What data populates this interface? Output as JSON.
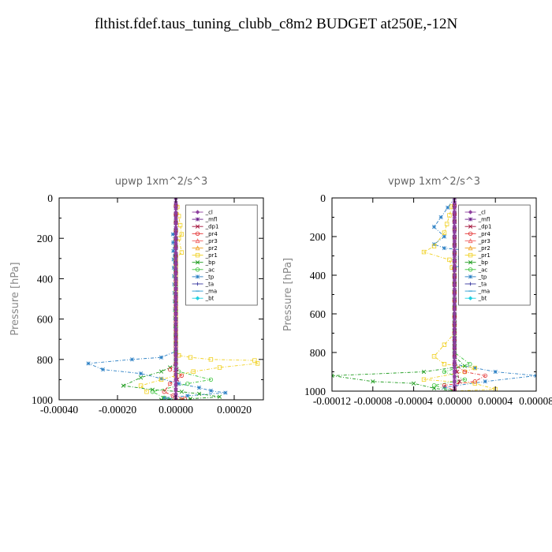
{
  "page": {
    "title": "flthist.fdef.taus_tuning_clubb_c8m2  BUDGET at250E,-12N"
  },
  "colors": {
    "_cl": "#8e3f9e",
    "_mfl": "#6a1c8a",
    "_dp1": "#a3123a",
    "_pr4": "#e33030",
    "_pr3": "#f06060",
    "_pr2": "#f0a020",
    "_pr1": "#f0d020",
    "_bp": "#1a9a1a",
    "_ac": "#3ac43a",
    "_tp": "#2a7fc4",
    "_ta": "#3a3aa0",
    "_ma": "#2a9ad0",
    "_bt": "#20d0e0"
  },
  "chart_data": [
    {
      "type": "line",
      "title": "upwp   1xm^2/s^3",
      "xlabel": "",
      "ylabel": "Pressure [hPa]",
      "xlim": [
        -0.0004,
        0.0003
      ],
      "ylim": [
        1000,
        0
      ],
      "xticks": [
        -0.0004,
        -0.0002,
        0.0,
        0.0002
      ],
      "xtick_labels": [
        "-0.00040",
        "-0.00020",
        "0.00000",
        "0.00020"
      ],
      "yticks": [
        0,
        200,
        400,
        600,
        800,
        1000
      ],
      "ytick_labels": [
        "0",
        "200",
        "400",
        "600",
        "800",
        "1000"
      ],
      "legend": [
        "_cl",
        "_mfl",
        "_dp1",
        "_pr4",
        "_pr3",
        "_pr2",
        "_pr1",
        "_bp",
        "_ac",
        "_tp",
        "_ta",
        "_ma",
        "_bt"
      ],
      "legend_position": "top-right",
      "series": [
        {
          "name": "_tp",
          "x": [
            0.0,
            0.0,
            -1e-05,
            0.0,
            -5e-05,
            -0.00015,
            -0.0003,
            -0.00025,
            -0.00012,
            -5e-05,
            1e-05,
            8e-05,
            0.00012,
            0.00017,
            4e-05,
            -4e-05,
            -2e-05
          ],
          "y": [
            0,
            150,
            180,
            760,
            790,
            800,
            820,
            850,
            870,
            895,
            920,
            940,
            955,
            965,
            980,
            990,
            1000
          ]
        },
        {
          "name": "_pr1",
          "x": [
            0.0,
            2e-05,
            1e-05,
            2e-05,
            0.0,
            0.0,
            1e-05,
            5e-05,
            0.00012,
            0.00027,
            0.00028,
            0.00015,
            6e-05,
            0.0,
            -5e-05,
            -0.00012,
            -0.0001
          ],
          "y": [
            0,
            180,
            200,
            270,
            300,
            760,
            780,
            790,
            800,
            805,
            820,
            840,
            860,
            880,
            900,
            930,
            960
          ]
        },
        {
          "name": "_bp",
          "x": [
            0.0,
            0.0,
            -2e-05,
            -5e-05,
            -0.00012,
            -0.00018,
            -8e-05,
            2e-05,
            8e-05,
            0.00015,
            5e-05,
            -5e-05,
            0.0
          ],
          "y": [
            0,
            820,
            840,
            860,
            890,
            930,
            950,
            960,
            970,
            985,
            995,
            1000,
            1000
          ]
        },
        {
          "name": "_ac",
          "x": [
            0.0,
            0.0,
            1e-05,
            0.00012,
            4e-05,
            -8e-05,
            -4e-05,
            2e-05
          ],
          "y": [
            0,
            840,
            860,
            900,
            920,
            960,
            990,
            1000
          ]
        },
        {
          "name": "_pr4",
          "x": [
            0.0,
            0.0,
            -2e-05,
            2e-05,
            -2e-05,
            -4e-05,
            -1e-05,
            3e-05,
            0.0
          ],
          "y": [
            0,
            820,
            850,
            880,
            920,
            960,
            980,
            995,
            1000
          ]
        },
        {
          "name": "_dp1",
          "x": [
            0.0,
            0.0,
            5e-06,
            0.0,
            0.0
          ],
          "y": [
            0,
            800,
            900,
            950,
            1000
          ]
        },
        {
          "name": "_mfl",
          "x": [
            0.0,
            0.0
          ],
          "y": [
            0,
            1000
          ]
        },
        {
          "name": "_cl",
          "x": [
            0.0,
            0.0
          ],
          "y": [
            0,
            1000
          ]
        }
      ]
    },
    {
      "type": "line",
      "title": "vpwp   1xm^2/s^3",
      "xlabel": "",
      "ylabel": "Pressure [hPa]",
      "xlim": [
        -0.00012,
        8e-05
      ],
      "ylim": [
        1000,
        0
      ],
      "xticks": [
        -0.00012,
        -8e-05,
        -4e-05,
        0.0,
        4e-05,
        8e-05
      ],
      "xtick_labels": [
        "-0.00012",
        "-0.00008",
        "-0.00004",
        "0.00000",
        "0.00004",
        "0.00008"
      ],
      "yticks": [
        0,
        200,
        400,
        600,
        800,
        1000
      ],
      "ytick_labels": [
        "0",
        "200",
        "400",
        "600",
        "800",
        "1000"
      ],
      "legend": [
        "_cl",
        "_mfl",
        "_dp1",
        "_pr4",
        "_pr3",
        "_pr2",
        "_pr1",
        "_bp",
        "_ac",
        "_tp",
        "_ta",
        "_ma",
        "_bt"
      ],
      "legend_position": "top-right",
      "series": [
        {
          "name": "_tp",
          "x": [
            0.0,
            -2e-05,
            -1e-05,
            -2e-05,
            -1e-05,
            1e-05,
            5e-06,
            2e-05,
            0.0,
            0.0,
            2e-05,
            4e-05,
            8e-05,
            3e-05,
            -1e-05,
            0.0
          ],
          "y": [
            0,
            150,
            200,
            240,
            260,
            270,
            310,
            330,
            360,
            860,
            880,
            900,
            920,
            950,
            980,
            1000
          ]
        },
        {
          "name": "_pr1",
          "x": [
            0.0,
            -1e-05,
            -2e-05,
            -3e-05,
            -5e-06,
            0.0,
            0.0,
            -1e-05,
            -2e-05,
            -1e-05,
            2e-05,
            1e-05,
            -3e-05,
            2e-05,
            4e-05,
            0.0
          ],
          "y": [
            0,
            180,
            250,
            280,
            320,
            400,
            700,
            760,
            820,
            860,
            880,
            900,
            940,
            960,
            990,
            1000
          ]
        },
        {
          "name": "_bp",
          "x": [
            0.0,
            0.0,
            1e-05,
            -3e-05,
            -0.00012,
            -8e-05,
            -4e-05,
            -2e-05,
            0.0
          ],
          "y": [
            0,
            820,
            870,
            900,
            920,
            950,
            960,
            985,
            1000
          ]
        },
        {
          "name": "_ac",
          "x": [
            0.0,
            0.0,
            1.5e-05,
            -1e-05,
            1e-05,
            -2e-05,
            0.0
          ],
          "y": [
            0,
            800,
            860,
            900,
            940,
            970,
            1000
          ]
        },
        {
          "name": "_pr4",
          "x": [
            0.0,
            0.0,
            1e-05,
            3e-05,
            2e-05,
            -1e-05,
            0.0
          ],
          "y": [
            0,
            860,
            900,
            920,
            950,
            970,
            1000
          ]
        },
        {
          "name": "_dp1",
          "x": [
            0.0,
            0.0,
            5e-06,
            0.0
          ],
          "y": [
            0,
            850,
            950,
            1000
          ]
        },
        {
          "name": "_mfl",
          "x": [
            0.0,
            0.0
          ],
          "y": [
            0,
            1000
          ]
        },
        {
          "name": "_cl",
          "x": [
            0.0,
            0.0
          ],
          "y": [
            0,
            1000
          ]
        }
      ]
    }
  ]
}
